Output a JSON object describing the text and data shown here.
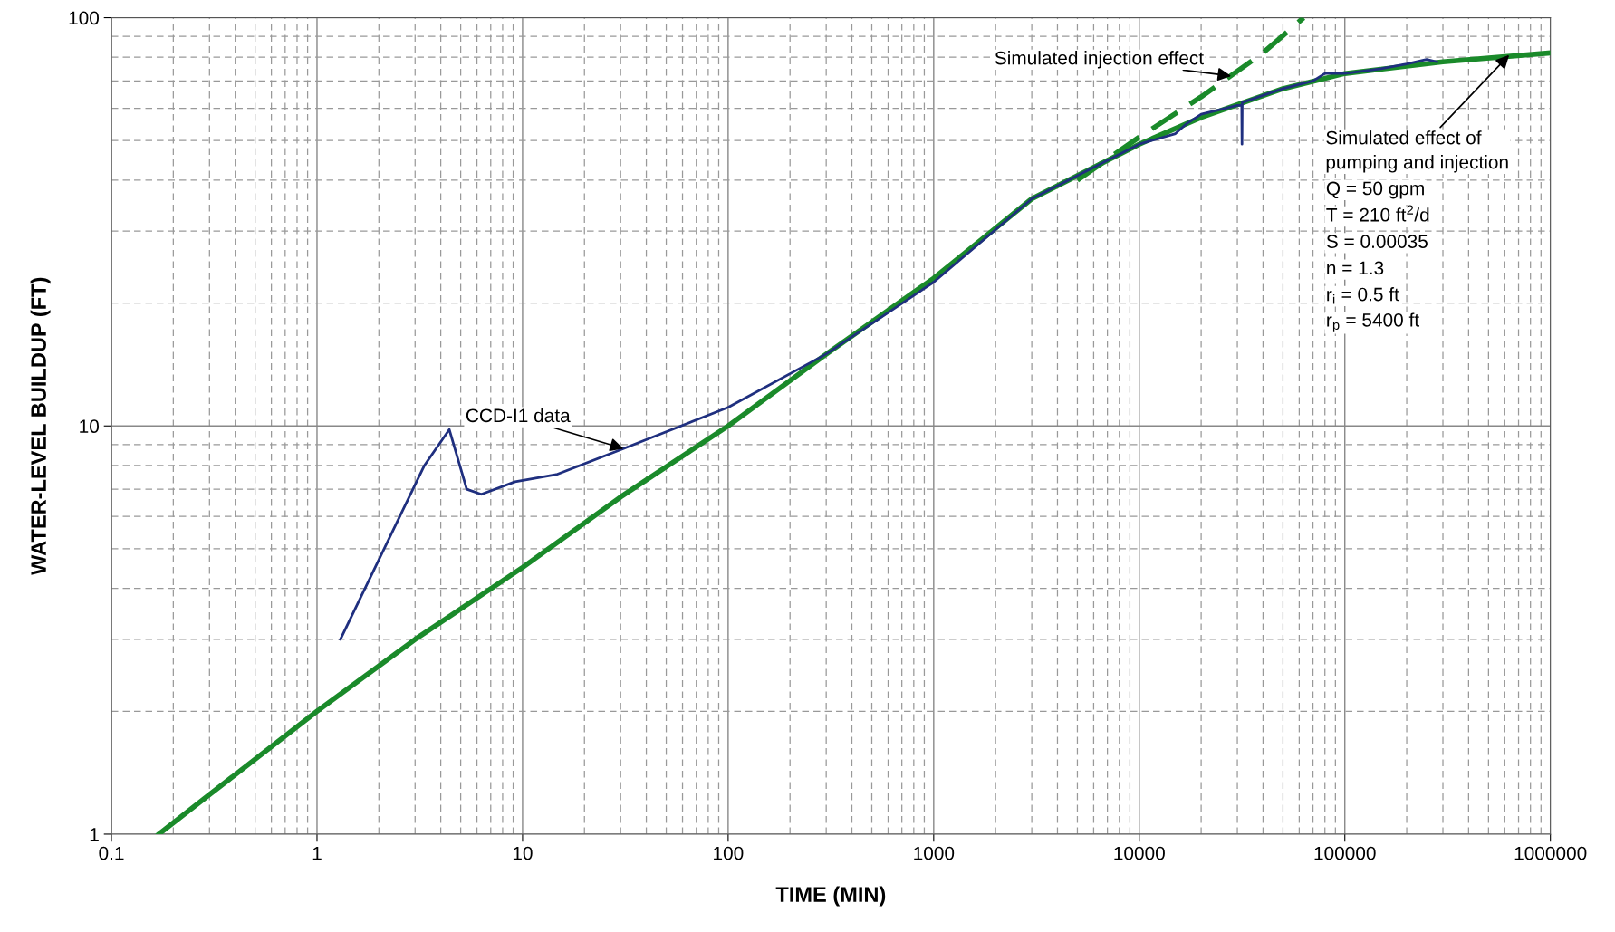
{
  "chart_data": {
    "type": "line",
    "xlabel": "TIME (MIN)",
    "ylabel": "WATER-LEVEL BUILDUP (FT)",
    "log": "xy",
    "grid": true,
    "xlim": [
      0.1,
      1000000
    ],
    "xticks": [
      {
        "value": 0.1,
        "label": "0.1"
      },
      {
        "value": 1,
        "label": "1"
      },
      {
        "value": 10,
        "label": "10"
      },
      {
        "value": 100,
        "label": "100"
      },
      {
        "value": 1000,
        "label": "1000"
      },
      {
        "value": 10000,
        "label": "10000"
      },
      {
        "value": 100000,
        "label": "100000"
      },
      {
        "value": 1000000,
        "label": "1000000"
      }
    ],
    "ylim": [
      1,
      100
    ],
    "yticks": [
      1,
      10,
      100
    ],
    "series": [
      {
        "color": "#1a8a2a",
        "line_style": "dashed",
        "x": [
          5000,
          10000,
          20000,
          40000,
          63000
        ],
        "values": [
          40,
          51,
          64,
          82,
          100
        ]
      },
      {
        "color": "#1a8a2a",
        "line_style": "solid",
        "x": [
          0.17,
          0.3,
          1,
          3,
          10,
          30,
          100,
          300,
          1000,
          3000,
          10000,
          20000,
          50000,
          100000,
          300000,
          1000000
        ],
        "values": [
          1,
          1.25,
          2.0,
          3.0,
          4.5,
          6.7,
          10,
          15,
          23,
          36,
          49,
          57,
          67,
          73,
          78,
          82
        ]
      },
      {
        "color": "#1f2f7f",
        "line_style": "solid",
        "x": [
          1.3,
          3.33,
          4.4,
          5.35,
          6.3,
          9.2,
          14.6,
          31,
          100,
          300,
          1000,
          3000,
          10000,
          15000,
          17000,
          20000,
          30000,
          31500,
          31600,
          31700,
          50000,
          70000,
          80000,
          100000,
          150000,
          200000,
          250000,
          280000
        ],
        "values": [
          3.0,
          8.0,
          9.8,
          7.0,
          6.8,
          7.3,
          7.6,
          8.8,
          11.1,
          15,
          22.5,
          36,
          49,
          52,
          55,
          58,
          61,
          61,
          49,
          62,
          67,
          70,
          73,
          73,
          75,
          77,
          79,
          78
        ]
      }
    ],
    "annotations": [
      {
        "text": "CCD-I1 data",
        "x": 31,
        "y": 8.8
      },
      {
        "text": "Simulated injection effect",
        "x": 28000,
        "y": 72
      },
      {
        "text": "Simulated effect of\npumping and injection",
        "x": 630000,
        "y": 81
      },
      "Q = 50 gpm",
      "T = 210 ft$^{2}$/d",
      "S = 0.00035",
      "n = 1.3",
      "r$_{i}$ = 0.5 ft",
      "r$_{p}$ = 5400 ft"
    ]
  }
}
